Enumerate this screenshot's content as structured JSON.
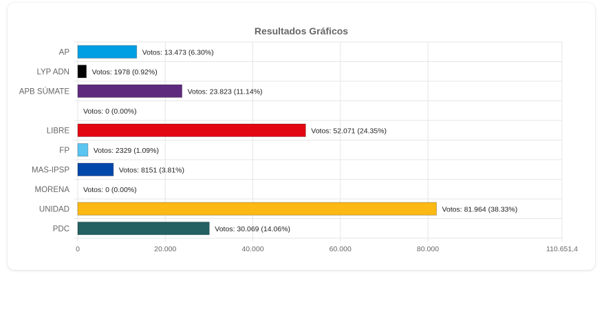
{
  "chart_data": {
    "type": "bar",
    "orientation": "horizontal",
    "title": "Resultados Gráficos",
    "categories": [
      "AP",
      "LYP ADN",
      "APB SÚMATE",
      "",
      "LIBRE",
      "FP",
      "MAS-IPSP",
      "MORENA",
      "UNIDAD",
      "PDC"
    ],
    "values": [
      13473,
      1978,
      23823,
      0,
      52071,
      2329,
      8151,
      0,
      81964,
      30069
    ],
    "data_labels": [
      "Votos: 13.473 (6.30%)",
      "Votos: 1978 (0.92%)",
      "Votos: 23.823 (11.14%)",
      "Votos: 0 (0.00%)",
      "Votos: 52.071 (24.35%)",
      "Votos: 2329 (1.09%)",
      "Votos: 8151 (3.81%)",
      "Votos: 0 (0.00%)",
      "Votos: 81.964 (38.33%)",
      "Votos: 30.069 (14.06%)"
    ],
    "colors": [
      "#009FE3",
      "#000000",
      "#5E2A7E",
      "#cccccc",
      "#E30613",
      "#5BC5F2",
      "#0047AB",
      "#8B1A1A",
      "#FDB913",
      "#236162"
    ],
    "xlim": [
      0,
      110651.4
    ],
    "xticks": [
      0,
      20000,
      40000,
      60000,
      80000,
      110651.4
    ],
    "xtick_labels": [
      "0",
      "20.000",
      "40.000",
      "60.000",
      "80.000",
      "110.651,4"
    ],
    "grid": true,
    "legend": "none"
  }
}
